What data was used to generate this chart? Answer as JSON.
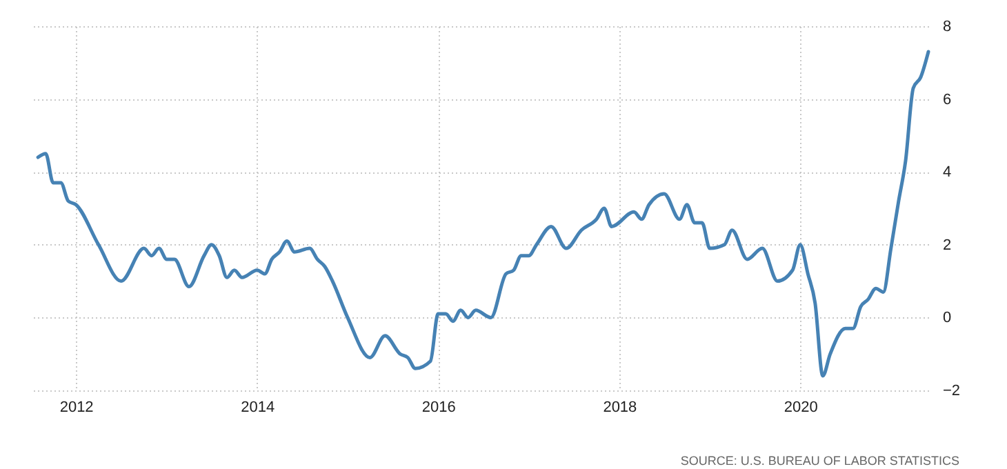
{
  "chart_data": {
    "type": "line",
    "x": [
      "2011-08",
      "2011-09",
      "2011-10",
      "2011-11",
      "2011-12",
      "2012-01",
      "2012-04",
      "2012-07",
      "2012-10",
      "2012-11",
      "2012-12",
      "2013-01",
      "2013-02",
      "2013-04",
      "2013-06",
      "2013-07",
      "2013-08",
      "2013-09",
      "2013-10",
      "2013-11",
      "2014-01",
      "2014-02",
      "2014-03",
      "2014-04",
      "2014-05",
      "2014-06",
      "2014-08",
      "2014-09",
      "2014-10",
      "2014-11",
      "2015-01",
      "2015-04",
      "2015-06",
      "2015-08",
      "2015-09",
      "2015-10",
      "2015-12",
      "2016-01",
      "2016-02",
      "2016-03",
      "2016-04",
      "2016-05",
      "2016-06",
      "2016-08",
      "2016-10",
      "2016-11",
      "2016-12",
      "2017-01",
      "2017-02",
      "2017-04",
      "2017-06",
      "2017-08",
      "2017-10",
      "2017-11",
      "2017-12",
      "2018-03",
      "2018-04",
      "2018-05",
      "2018-07",
      "2018-09",
      "2018-10",
      "2018-11",
      "2018-12",
      "2019-01",
      "2019-03",
      "2019-04",
      "2019-06",
      "2019-08",
      "2019-10",
      "2019-12",
      "2020-01",
      "2020-02",
      "2020-03",
      "2020-04",
      "2020-05",
      "2020-07",
      "2020-08",
      "2020-09",
      "2020-10",
      "2020-11",
      "2020-12",
      "2021-01",
      "2021-02",
      "2021-03",
      "2021-04",
      "2021-05",
      "2021-06"
    ],
    "series": [
      {
        "color": "#4682b4",
        "values": [
          4.4,
          4.5,
          3.7,
          3.7,
          3.2,
          3.1,
          2.0,
          1.0,
          1.9,
          1.7,
          1.9,
          1.6,
          1.6,
          0.85,
          1.7,
          2.0,
          1.7,
          1.1,
          1.3,
          1.1,
          1.3,
          1.2,
          1.6,
          1.8,
          2.1,
          1.8,
          1.9,
          1.6,
          1.4,
          1.0,
          0.0,
          -1.1,
          -0.5,
          -1.0,
          -1.1,
          -1.4,
          -1.2,
          0.1,
          0.1,
          -0.1,
          0.2,
          0.0,
          0.2,
          0.0,
          1.2,
          1.3,
          1.7,
          1.7,
          2.0,
          2.5,
          1.9,
          2.4,
          2.7,
          3.0,
          2.5,
          2.9,
          2.7,
          3.1,
          3.4,
          2.7,
          3.1,
          2.6,
          2.6,
          1.9,
          2.0,
          2.4,
          1.6,
          1.9,
          1.0,
          1.3,
          2.0,
          1.2,
          0.4,
          -1.6,
          -1.0,
          -0.3,
          -0.3,
          0.3,
          0.5,
          0.8,
          0.7,
          1.9,
          3.2,
          4.3,
          6.3,
          6.6,
          7.3
        ]
      }
    ],
    "xlim": [
      "2011-07",
      "2021-06"
    ],
    "xticks": [
      "2012",
      "2014",
      "2016",
      "2018",
      "2020"
    ],
    "ylim": [
      -2,
      8
    ],
    "yticks": [
      -2,
      0,
      2,
      4,
      6,
      8
    ],
    "grid": true,
    "annotations": [
      "SOURCE: U.S. BUREAU OF LABOR STATISTICS"
    ]
  }
}
